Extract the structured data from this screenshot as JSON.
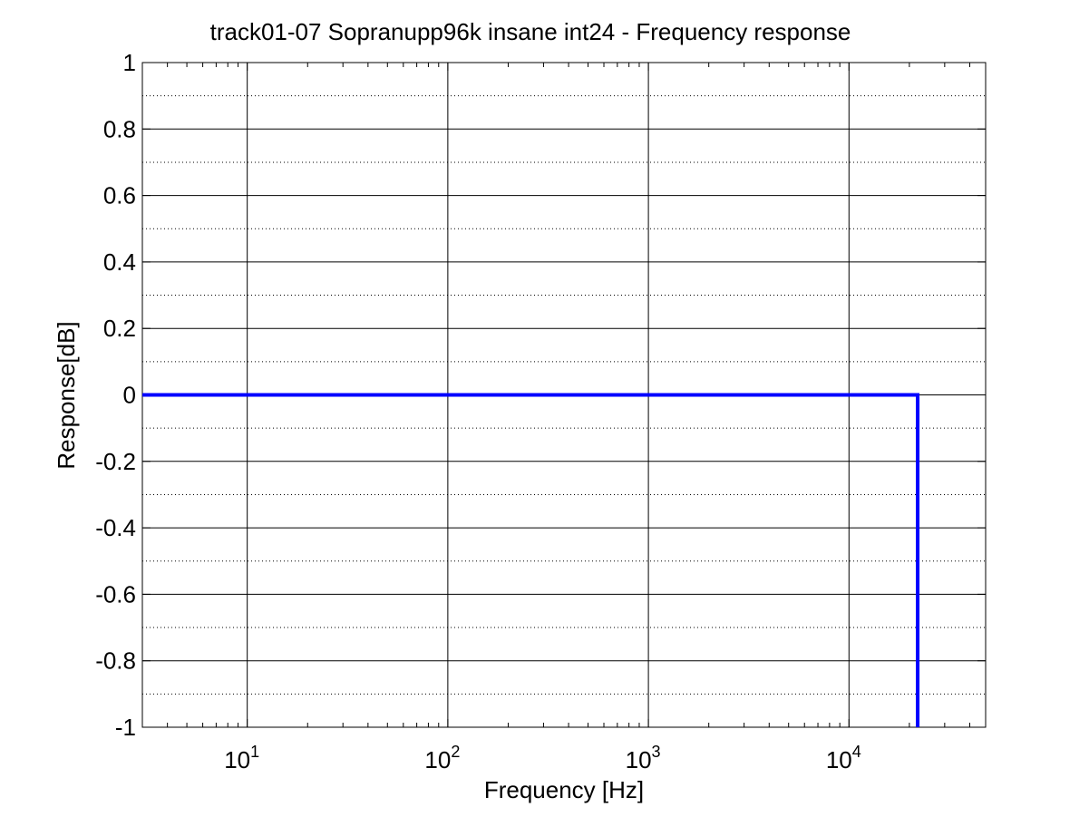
{
  "chart_data": {
    "type": "line",
    "title": "track01-07 Sopranupp96k insane int24 - Frequency response",
    "x_label": "Frequency [Hz]",
    "y_label": "Response[dB]",
    "x_scale": "log",
    "grid": true,
    "minor_grid": true,
    "x": [
      3,
      22000,
      22000
    ],
    "series": [
      {
        "color": "#0000ff",
        "values": [
          0,
          0,
          -1
        ]
      }
    ],
    "xlim": [
      3,
      48000
    ],
    "xticks": [
      {
        "value": 10,
        "label": "10^1"
      },
      {
        "value": 100,
        "label": "10^2"
      },
      {
        "value": 1000,
        "label": "10^3"
      },
      {
        "value": 10000,
        "label": "10^4"
      }
    ],
    "ylim": [
      -1,
      1
    ],
    "yticks": [
      -1,
      -0.8,
      -0.6,
      -0.4,
      -0.2,
      0,
      0.2,
      0.4,
      0.6,
      0.8,
      1
    ]
  }
}
